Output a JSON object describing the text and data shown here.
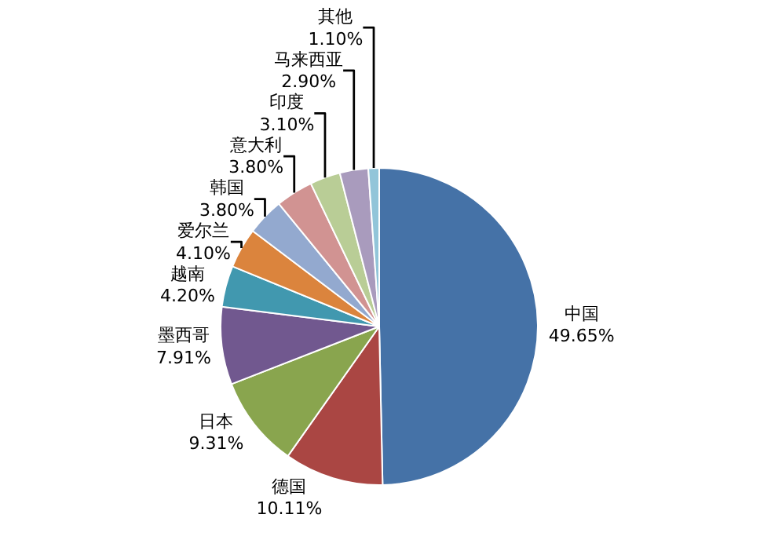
{
  "chart_data": {
    "type": "pie",
    "categories": [
      "中国",
      "德国",
      "日本",
      "墨西哥",
      "越南",
      "爱尔兰",
      "韩国",
      "意大利",
      "印度",
      "马来西亚",
      "其他"
    ],
    "values": [
      49.65,
      10.11,
      9.31,
      7.91,
      4.2,
      4.1,
      3.8,
      3.8,
      3.1,
      2.9,
      1.1
    ],
    "value_labels": [
      "49.65%",
      "10.11%",
      "9.31%",
      "7.91%",
      "4.20%",
      "4.10%",
      "3.80%",
      "3.80%",
      "3.10%",
      "2.90%",
      "1.10%"
    ],
    "colors": [
      "#4572a7",
      "#aa4643",
      "#89a54e",
      "#71588f",
      "#4198af",
      "#db843d",
      "#93a9cf",
      "#d19392",
      "#b9cd96",
      "#a99bbd",
      "#92c5d9"
    ],
    "legend": false
  }
}
